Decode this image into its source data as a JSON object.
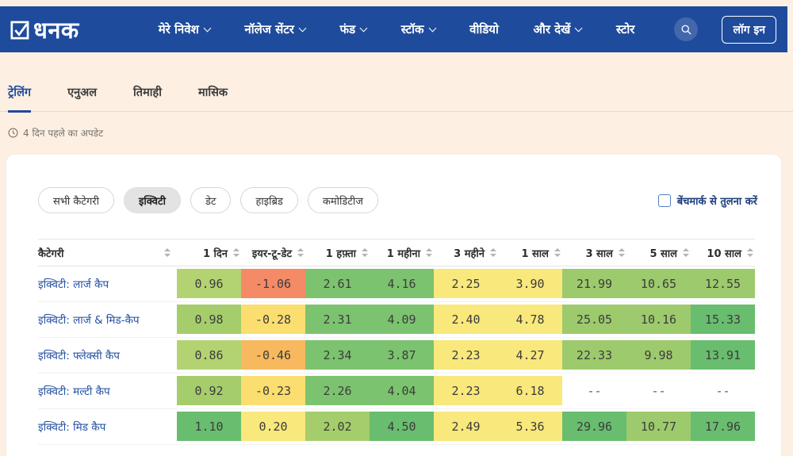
{
  "palette": {
    "navbar_blue": "#1e4b9c",
    "page_beige": "#fdf0e3",
    "link_blue": "#2351a1",
    "heatmap": {
      "gA": "#b3d372",
      "gB": "#a5cd6c",
      "gC": "#9dca6c",
      "gD": "#7cc36f",
      "gE": "#69bd6e",
      "yA": "#f9e87b",
      "yB": "#fade6f",
      "orange": "#f8b95e",
      "salmon": "#f58a67",
      "none": "transparent"
    }
  },
  "navbar": {
    "logo_text": "धनक",
    "items": [
      {
        "label": "मेरे निवेश",
        "chevron": true
      },
      {
        "label": "नॉलेज सेंटर",
        "chevron": true
      },
      {
        "label": "फंड",
        "chevron": true
      },
      {
        "label": "स्टॉक",
        "chevron": true
      },
      {
        "label": "वीडियो",
        "chevron": false
      },
      {
        "label": "और देखें",
        "chevron": true
      },
      {
        "label": "स्टोर",
        "chevron": false
      }
    ],
    "login_label": "लॉग इन"
  },
  "tabs": [
    {
      "label": "ट्रेलिंग",
      "active": true
    },
    {
      "label": "एनुअल",
      "active": false
    },
    {
      "label": "तिमाही",
      "active": false
    },
    {
      "label": "मासिक",
      "active": false
    }
  ],
  "update_text": "4 दिन पहले का अपडेट",
  "filters": {
    "chips": [
      {
        "label": "सभी कैटेगरी",
        "active": false
      },
      {
        "label": "इक्विटी",
        "active": true
      },
      {
        "label": "डेट",
        "active": false
      },
      {
        "label": "हाइब्रिड",
        "active": false
      },
      {
        "label": "कमोडिटीज",
        "active": false
      }
    ],
    "benchmark_label": "बेंचमार्क से तुलना करें"
  },
  "table": {
    "columns": [
      "कैटेगरी",
      "1 दिन",
      "इयर-टू-डेट",
      "1 हफ़्ता",
      "1 महीना",
      "3 महीने",
      "1 साल",
      "3 साल",
      "5 साल",
      "10 साल"
    ],
    "rows": [
      {
        "category": "इक्विटी: लार्ज कैप",
        "cells": [
          {
            "value": "0.96",
            "color": "gA"
          },
          {
            "value": "-1.06",
            "color": "salmon"
          },
          {
            "value": "2.61",
            "color": "gD"
          },
          {
            "value": "4.16",
            "color": "gD"
          },
          {
            "value": "2.25",
            "color": "yA"
          },
          {
            "value": "3.90",
            "color": "yA"
          },
          {
            "value": "21.99",
            "color": "gC"
          },
          {
            "value": "10.65",
            "color": "gC"
          },
          {
            "value": "12.55",
            "color": "gC"
          }
        ]
      },
      {
        "category": "इक्विटी: लार्ज & मिड-कैप",
        "cells": [
          {
            "value": "0.98",
            "color": "gB"
          },
          {
            "value": "-0.28",
            "color": "yB"
          },
          {
            "value": "2.31",
            "color": "gD"
          },
          {
            "value": "4.09",
            "color": "gD"
          },
          {
            "value": "2.40",
            "color": "yA"
          },
          {
            "value": "4.78",
            "color": "yA"
          },
          {
            "value": "25.05",
            "color": "gC"
          },
          {
            "value": "10.16",
            "color": "gC"
          },
          {
            "value": "15.33",
            "color": "gE"
          }
        ]
      },
      {
        "category": "इक्विटी: फ्लेक्सी कैप",
        "cells": [
          {
            "value": "0.86",
            "color": "gA"
          },
          {
            "value": "-0.46",
            "color": "orange"
          },
          {
            "value": "2.34",
            "color": "gD"
          },
          {
            "value": "3.87",
            "color": "gD"
          },
          {
            "value": "2.23",
            "color": "yA"
          },
          {
            "value": "4.27",
            "color": "yA"
          },
          {
            "value": "22.33",
            "color": "gC"
          },
          {
            "value": "9.98",
            "color": "gC"
          },
          {
            "value": "13.91",
            "color": "gE"
          }
        ]
      },
      {
        "category": "इक्विटी: मल्टी कैप",
        "cells": [
          {
            "value": "0.92",
            "color": "gB"
          },
          {
            "value": "-0.23",
            "color": "yB"
          },
          {
            "value": "2.26",
            "color": "gD"
          },
          {
            "value": "4.04",
            "color": "gD"
          },
          {
            "value": "2.23",
            "color": "yA"
          },
          {
            "value": "6.18",
            "color": "yA"
          },
          {
            "value": "--",
            "color": "none"
          },
          {
            "value": "--",
            "color": "none"
          },
          {
            "value": "--",
            "color": "none"
          }
        ]
      },
      {
        "category": "इक्विटी: मिड कैप",
        "cells": [
          {
            "value": "1.10",
            "color": "gE"
          },
          {
            "value": "0.20",
            "color": "yA"
          },
          {
            "value": "2.02",
            "color": "gB"
          },
          {
            "value": "4.50",
            "color": "gE"
          },
          {
            "value": "2.49",
            "color": "yA"
          },
          {
            "value": "5.36",
            "color": "yA"
          },
          {
            "value": "29.96",
            "color": "gE"
          },
          {
            "value": "10.77",
            "color": "gC"
          },
          {
            "value": "17.96",
            "color": "gE"
          }
        ]
      }
    ]
  }
}
